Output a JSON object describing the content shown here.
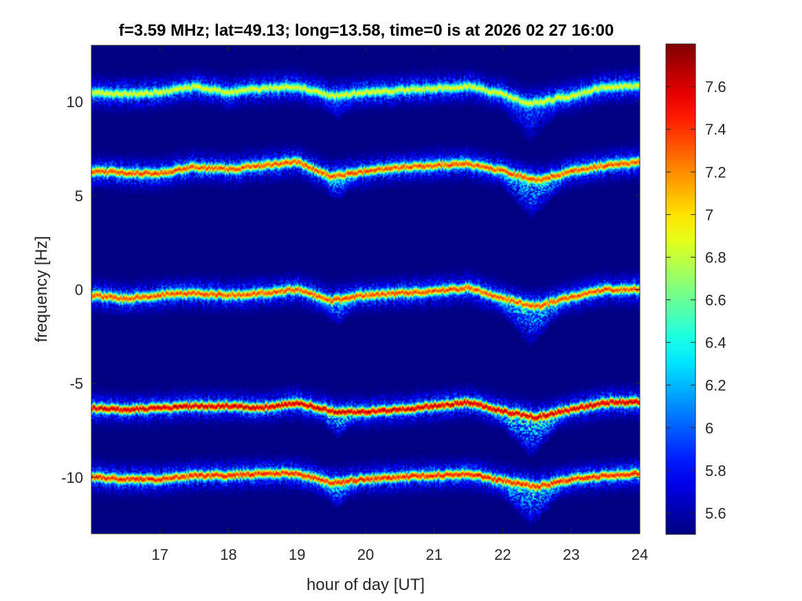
{
  "chart_data": {
    "type": "heatmap",
    "title": "f=3.59 MHz;  lat=49.13; long=13.58, time=0 is at 2026 02 27 16:00",
    "xlabel": "hour of day [UT]",
    "ylabel": "frequency [Hz]",
    "xlim": [
      16,
      24
    ],
    "ylim": [
      -13,
      13
    ],
    "x_ticks": [
      17,
      18,
      19,
      20,
      21,
      22,
      23,
      24
    ],
    "x_tick_labels": [
      "17",
      "18",
      "19",
      "20",
      "21",
      "22",
      "23",
      "24"
    ],
    "y_ticks": [
      10,
      5,
      0,
      -5,
      -10
    ],
    "y_tick_labels": [
      "10",
      "5",
      "0",
      "-5",
      "-10"
    ],
    "colorbar": {
      "min": 5.5,
      "max": 7.8,
      "ticks": [
        7.6,
        7.4,
        7.2,
        7,
        6.8,
        6.6,
        6.4,
        6.2,
        6,
        5.8,
        5.6
      ],
      "tick_labels": [
        "7.6",
        "7.4",
        "7.2",
        "7",
        "6.8",
        "6.6",
        "6.4",
        "6.2",
        "6",
        "5.8",
        "5.6"
      ],
      "colormap": "jet"
    },
    "background_value": 5.5,
    "traces": [
      {
        "name": "",
        "intensity": 7.0,
        "points": [
          [
            16.0,
            10.5
          ],
          [
            16.5,
            10.4
          ],
          [
            17.0,
            10.5
          ],
          [
            17.5,
            10.8
          ],
          [
            18.0,
            10.5
          ],
          [
            18.5,
            10.7
          ],
          [
            19.0,
            10.8
          ],
          [
            19.5,
            10.3
          ],
          [
            20.0,
            10.5
          ],
          [
            20.5,
            10.6
          ],
          [
            21.0,
            10.7
          ],
          [
            21.5,
            10.8
          ],
          [
            22.0,
            10.4
          ],
          [
            22.4,
            9.9
          ],
          [
            23.0,
            10.3
          ],
          [
            23.5,
            10.8
          ],
          [
            24.0,
            10.8
          ]
        ]
      },
      {
        "name": "",
        "intensity": 7.5,
        "points": [
          [
            16.0,
            6.3
          ],
          [
            16.5,
            6.2
          ],
          [
            17.0,
            6.2
          ],
          [
            17.5,
            6.5
          ],
          [
            18.0,
            6.4
          ],
          [
            18.5,
            6.6
          ],
          [
            19.0,
            6.8
          ],
          [
            19.5,
            6.0
          ],
          [
            20.0,
            6.3
          ],
          [
            20.5,
            6.5
          ],
          [
            21.0,
            6.6
          ],
          [
            21.5,
            6.7
          ],
          [
            22.0,
            6.3
          ],
          [
            22.5,
            5.8
          ],
          [
            23.0,
            6.3
          ],
          [
            23.5,
            6.6
          ],
          [
            24.0,
            6.8
          ]
        ]
      },
      {
        "name": "",
        "intensity": 7.5,
        "points": [
          [
            16.0,
            -0.3
          ],
          [
            16.5,
            -0.5
          ],
          [
            17.0,
            -0.3
          ],
          [
            17.5,
            -0.2
          ],
          [
            18.0,
            -0.3
          ],
          [
            18.5,
            -0.2
          ],
          [
            19.0,
            0.0
          ],
          [
            19.5,
            -0.6
          ],
          [
            20.0,
            -0.3
          ],
          [
            20.5,
            -0.2
          ],
          [
            21.0,
            -0.1
          ],
          [
            21.5,
            0.1
          ],
          [
            22.0,
            -0.5
          ],
          [
            22.5,
            -0.9
          ],
          [
            23.0,
            -0.4
          ],
          [
            23.5,
            0.0
          ],
          [
            24.0,
            0.0
          ]
        ]
      },
      {
        "name": "",
        "intensity": 7.8,
        "points": [
          [
            16.0,
            -6.3
          ],
          [
            16.5,
            -6.4
          ],
          [
            17.0,
            -6.3
          ],
          [
            17.5,
            -6.2
          ],
          [
            18.0,
            -6.2
          ],
          [
            18.5,
            -6.3
          ],
          [
            19.0,
            -6.0
          ],
          [
            19.5,
            -6.5
          ],
          [
            20.0,
            -6.5
          ],
          [
            20.5,
            -6.4
          ],
          [
            21.0,
            -6.2
          ],
          [
            21.5,
            -6.0
          ],
          [
            22.0,
            -6.5
          ],
          [
            22.5,
            -6.8
          ],
          [
            23.0,
            -6.4
          ],
          [
            23.5,
            -6.0
          ],
          [
            24.0,
            -6.0
          ]
        ]
      },
      {
        "name": "",
        "intensity": 7.6,
        "points": [
          [
            16.0,
            -10.0
          ],
          [
            16.5,
            -10.1
          ],
          [
            17.0,
            -10.1
          ],
          [
            17.5,
            -9.9
          ],
          [
            18.0,
            -9.9
          ],
          [
            18.5,
            -9.8
          ],
          [
            19.0,
            -9.8
          ],
          [
            19.5,
            -10.3
          ],
          [
            20.0,
            -10.1
          ],
          [
            20.5,
            -10.0
          ],
          [
            21.0,
            -9.9
          ],
          [
            21.5,
            -9.8
          ],
          [
            22.0,
            -10.2
          ],
          [
            22.5,
            -10.5
          ],
          [
            23.0,
            -10.1
          ],
          [
            23.5,
            -9.9
          ],
          [
            24.0,
            -9.8
          ]
        ]
      }
    ],
    "disturbances": [
      {
        "x_start": 19.3,
        "x_end": 20.0,
        "x_center": 19.6,
        "depth_hz": 1.2
      },
      {
        "x_start": 21.8,
        "x_end": 23.0,
        "x_center": 22.4,
        "depth_hz": 2.0
      }
    ]
  }
}
